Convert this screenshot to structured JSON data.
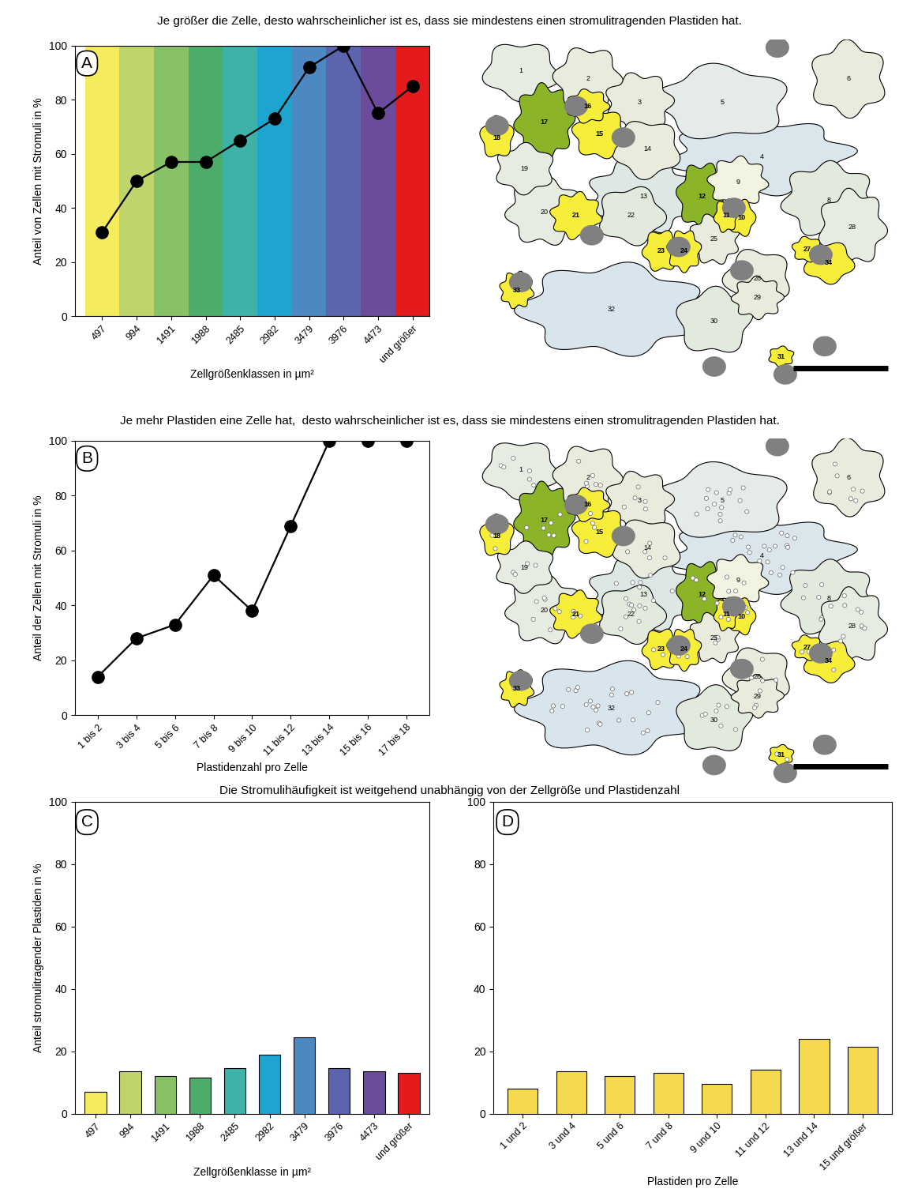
{
  "headings": [
    "Je größer die Zelle, desto wahrscheinlicher ist es, dass sie mindestens einen stromulitragenden Plastiden hat.",
    "Je mehr Plastiden eine Zelle hat,  desto wahrscheinlicher ist es, dass sie mindestens einen stromulitragenden Plastiden hat.",
    "Die Stromulihäufigkeit ist weitgehend unabhängig von der Zellgröße und Plastidenzahl"
  ],
  "chart_data": [
    {
      "type": "line",
      "annotations": [
        "A"
      ],
      "x_label": "Zellgrößenklassen in µm²",
      "y_label": "Anteil von Zellen mit Stromuli in %",
      "categories": [
        "497",
        "994",
        "1491",
        "1988",
        "2485",
        "2982",
        "3479",
        "3976",
        "4473",
        "und größer"
      ],
      "values": [
        31,
        50,
        57,
        57,
        65,
        73,
        92,
        100,
        75,
        85
      ],
      "color": "#000000",
      "marker": "o",
      "colors": [
        "#f4ec5c",
        "#bfd46a",
        "#88c266",
        "#4cad68",
        "#3fb2a8",
        "#1ea5cf",
        "#4c88c1",
        "#5b64ac",
        "#6b4b9b",
        "#e41a1c"
      ],
      "ylim": [
        0,
        100
      ],
      "yticks": [
        0,
        20,
        40,
        60,
        80,
        100
      ]
    },
    {
      "type": "line",
      "annotations": [
        "B"
      ],
      "x_label": "Plastidenzahl pro Zelle",
      "y_label": "Anteil der Zellen mit Stromuli in %",
      "categories": [
        "1 bis 2",
        "3 bis 4",
        "5 bis 6",
        "7 bis 8",
        "9 bis 10",
        "11 bis 12",
        "13 bis 14",
        "15 bis 16",
        "17 bis 18"
      ],
      "values": [
        14,
        28,
        33,
        51,
        38,
        69,
        100,
        100,
        100
      ],
      "color": "#000000",
      "marker": "o",
      "ylim": [
        0,
        100
      ],
      "yticks": [
        0,
        20,
        40,
        60,
        80,
        100
      ]
    },
    {
      "type": "bar",
      "annotations": [
        "C"
      ],
      "x_label": "Zellgrößenklasse in µm²",
      "y_label": "Anteil stromulitragender Plastiden in %",
      "categories": [
        "497",
        "994",
        "1491",
        "1988",
        "2485",
        "2982",
        "3479",
        "3976",
        "4473",
        "und größer"
      ],
      "values": [
        7,
        13.5,
        12,
        11.5,
        14.5,
        19,
        24.5,
        14.5,
        13.5,
        13
      ],
      "colors": [
        "#f4ec5c",
        "#bfd46a",
        "#88c266",
        "#4cad68",
        "#3fb2a8",
        "#1ea5cf",
        "#4c88c1",
        "#5b64ac",
        "#6b4b9b",
        "#e41a1c"
      ],
      "ylim": [
        0,
        100
      ],
      "yticks": [
        0,
        20,
        40,
        60,
        80,
        100
      ]
    },
    {
      "type": "bar",
      "annotations": [
        "D"
      ],
      "x_label": "Plastiden pro Zelle",
      "categories": [
        "1 und 2",
        "3 und 4",
        "5 und 6",
        "7 und 8",
        "9 und 10",
        "11 und 12",
        "13 und 14",
        "15 und größer"
      ],
      "values": [
        8,
        13.5,
        12,
        13,
        9.5,
        14,
        24,
        21.5
      ],
      "color": "#f5d94e",
      "ylim": [
        0,
        100
      ],
      "yticks": [
        0,
        20,
        40,
        60,
        80,
        100
      ]
    }
  ],
  "cell_maps": [
    {
      "cells": [
        "1",
        "2",
        "3",
        "4",
        "5",
        "6",
        "8",
        "9",
        "10",
        "11",
        "12",
        "13",
        "14",
        "15",
        "16",
        "17",
        "18",
        "19",
        "20",
        "21",
        "22",
        "23",
        "24",
        "25",
        "26",
        "27",
        "28",
        "29",
        "30",
        "31",
        "32",
        "33",
        "34"
      ],
      "colors": [
        "#e6ece2",
        "#e9ecdc",
        "#e9ecdc",
        "#dbe6ec",
        "#e4ebe8",
        "#e9ecdc",
        "#e2eade",
        "#f2f3e0",
        "#f7ee3a",
        "#f7ee3a",
        "#8cb428",
        "#dde8e4",
        "#e9ecdc",
        "#f7ee3a",
        "#f7ee3a",
        "#8cb428",
        "#f7ee3a",
        "#e6ece2",
        "#e6ece2",
        "#f7ee3a",
        "#e2eade",
        "#f7ee3a",
        "#f7ee3a",
        "#e9ecdc",
        "#e9ecdc",
        "#f7ee3a",
        "#e6ece2",
        "#e9ecdc",
        "#e2eade",
        "#f7ee3a",
        "#d9e5ec",
        "#f7ee3a",
        "#f7ee3a"
      ]
    },
    {
      "cells": [
        "1",
        "2",
        "3",
        "4",
        "5",
        "6",
        "8",
        "9",
        "10",
        "11",
        "12",
        "13",
        "14",
        "15",
        "16",
        "17",
        "18",
        "19",
        "20",
        "21",
        "22",
        "23",
        "24",
        "25",
        "26",
        "27",
        "28",
        "29",
        "30",
        "31",
        "32",
        "33",
        "34"
      ],
      "colors": [
        "#e6ece2",
        "#e9ecdc",
        "#e9ecdc",
        "#dbe6ec",
        "#e4ebe8",
        "#e9ecdc",
        "#e2eade",
        "#f2f3e0",
        "#f7ee3a",
        "#f7ee3a",
        "#8cb428",
        "#dde8e4",
        "#e9ecdc",
        "#f7ee3a",
        "#f7ee3a",
        "#8cb428",
        "#f7ee3a",
        "#e6ece2",
        "#e6ece2",
        "#f7ee3a",
        "#e2eade",
        "#f7ee3a",
        "#f7ee3a",
        "#e9ecdc",
        "#e9ecdc",
        "#f7ee3a",
        "#e6ece2",
        "#e9ecdc",
        "#e2eade",
        "#f7ee3a",
        "#d9e5ec",
        "#f7ee3a",
        "#f7ee3a"
      ]
    }
  ]
}
